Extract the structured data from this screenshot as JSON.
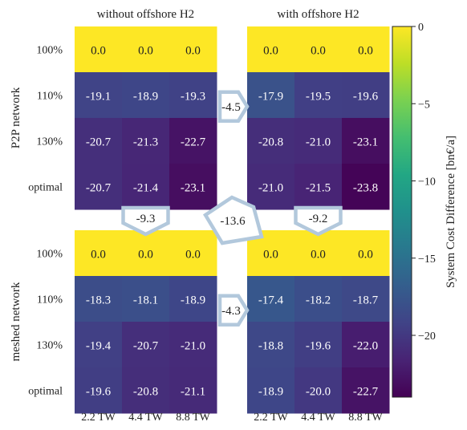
{
  "chart_data": {
    "type": "heatmap",
    "panel_titles": [
      "without offshore H2",
      "with offshore H2"
    ],
    "row_group_labels": [
      "P2P network",
      "meshed network"
    ],
    "row_labels": [
      "100%",
      "110%",
      "130%",
      "optimal"
    ],
    "col_labels": [
      "2.2 TW",
      "4.4 TW",
      "8.8 TW"
    ],
    "panels": [
      {
        "position": "top-left",
        "title": "without offshore H2",
        "row_group": "P2P network",
        "values": [
          [
            0.0,
            0.0,
            0.0
          ],
          [
            -19.1,
            -18.9,
            -19.3
          ],
          [
            -20.7,
            -21.3,
            -22.7
          ],
          [
            -20.7,
            -21.4,
            -23.1
          ]
        ]
      },
      {
        "position": "top-right",
        "title": "with offshore H2",
        "row_group": "P2P network",
        "values": [
          [
            0.0,
            0.0,
            0.0
          ],
          [
            -17.9,
            -19.5,
            -19.6
          ],
          [
            -20.8,
            -21.0,
            -23.1
          ],
          [
            -21.0,
            -21.5,
            -23.8
          ]
        ]
      },
      {
        "position": "bottom-left",
        "title": "without offshore H2",
        "row_group": "meshed network",
        "values": [
          [
            0.0,
            0.0,
            0.0
          ],
          [
            -18.3,
            -18.1,
            -18.9
          ],
          [
            -19.4,
            -20.7,
            -21.0
          ],
          [
            -19.6,
            -20.8,
            -21.1
          ]
        ]
      },
      {
        "position": "bottom-right",
        "title": "with offshore H2",
        "row_group": "meshed network",
        "values": [
          [
            0.0,
            0.0,
            0.0
          ],
          [
            -17.4,
            -18.2,
            -18.7
          ],
          [
            -18.8,
            -19.6,
            -22.0
          ],
          [
            -18.9,
            -20.0,
            -22.7
          ]
        ]
      }
    ],
    "annotations": [
      {
        "value": "-4.5",
        "shape": "arrow-right",
        "between": [
          "top-left",
          "top-right"
        ]
      },
      {
        "value": "-4.3",
        "shape": "arrow-right",
        "between": [
          "bottom-left",
          "bottom-right"
        ]
      },
      {
        "value": "-9.3",
        "shape": "arrow-down",
        "between": [
          "top-left",
          "bottom-left"
        ]
      },
      {
        "value": "-9.2",
        "shape": "arrow-down",
        "between": [
          "top-right",
          "bottom-right"
        ]
      },
      {
        "value": "-13.6",
        "shape": "arrow-diagonal",
        "between": [
          "top-left",
          "bottom-right"
        ]
      }
    ],
    "colorbar": {
      "label": "System Cost Difference [bn€/a]",
      "colormap": "viridis",
      "vmin": -24,
      "vmax": 0,
      "ticks": [
        0,
        -5,
        -10,
        -15,
        -20
      ],
      "tick_labels": [
        "0",
        "−5",
        "−10",
        "−15",
        "−20"
      ]
    },
    "annotation_color": "#b2c8dc"
  }
}
